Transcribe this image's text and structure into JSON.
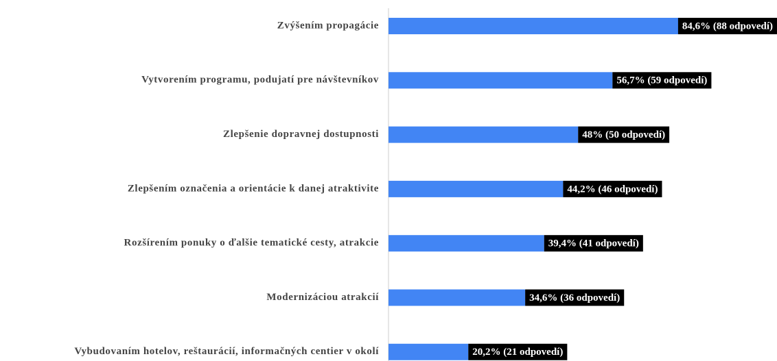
{
  "chart_data": {
    "type": "barh",
    "categories": [
      "Zvýšením propagácie",
      "Vytvorením programu, podujatí pre návštevníkov",
      "Zlepšenie dopravnej dostupnosti",
      "Zlepšením označenia a orientácie k danej atraktivite",
      "Rozšírením ponuky o ďalšie tematické cesty, atrakcie",
      "Modernizáciou atrakcií",
      "Vybudovaním hotelov, reštaurácií, informačných centier v okolí"
    ],
    "values": [
      84.6,
      56.7,
      48,
      44.2,
      39.4,
      34.6,
      20.2
    ],
    "value_labels": [
      "84,6% (88 odpovedí)",
      "56,7% (59 odpovedí)",
      "48% (50 odpovedí)",
      "44,2% (46 odpovedí)",
      "39,4% (41 odpovedí)",
      "34,6% (36 odpovedí)",
      "20,2% (21 odpovedí)"
    ],
    "color": "#4285f4",
    "xlim": [
      0,
      98
    ]
  }
}
